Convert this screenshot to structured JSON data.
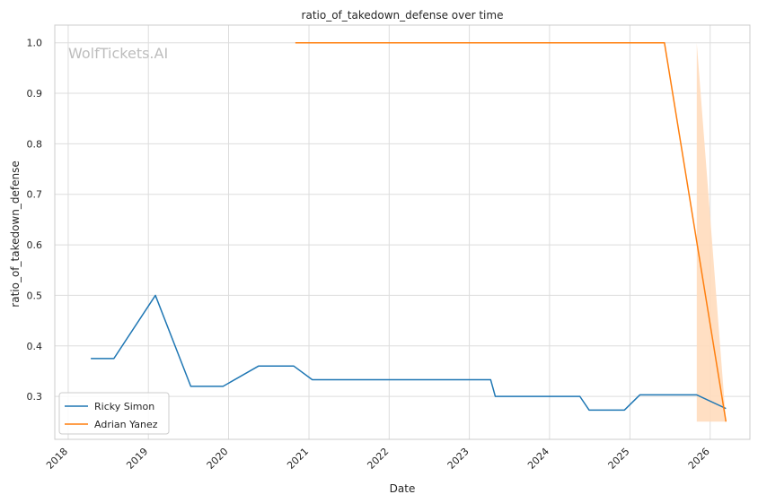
{
  "chart_data": {
    "type": "line",
    "title": "ratio_of_takedown_defense over time",
    "xlabel": "Date",
    "ylabel": "ratio_of_takedown_defense",
    "watermark": "WolfTickets.AI",
    "x_ticks": [
      "2018",
      "2019",
      "2020",
      "2021",
      "2022",
      "2023",
      "2024",
      "2025",
      "2026"
    ],
    "y_ticks": [
      "0.3",
      "0.4",
      "0.5",
      "0.6",
      "0.7",
      "0.8",
      "0.9",
      "1.0"
    ],
    "xlim": [
      "2017-11-01",
      "2026-07-01"
    ],
    "ylim": [
      0.215,
      1.035
    ],
    "grid": true,
    "legend_position": "lower-left",
    "series": [
      {
        "name": "Ricky Simon",
        "color": "#1f77b4",
        "points": [
          {
            "x": "2018-04-14",
            "y": 0.375
          },
          {
            "x": "2018-07-28",
            "y": 0.375
          },
          {
            "x": "2019-02-02",
            "y": 0.5
          },
          {
            "x": "2019-07-13",
            "y": 0.32
          },
          {
            "x": "2019-12-07",
            "y": 0.32
          },
          {
            "x": "2020-05-16",
            "y": 0.36
          },
          {
            "x": "2020-10-24",
            "y": 0.36
          },
          {
            "x": "2021-01-16",
            "y": 0.333
          },
          {
            "x": "2023-04-08",
            "y": 0.333
          },
          {
            "x": "2023-04-29",
            "y": 0.3
          },
          {
            "x": "2024-05-18",
            "y": 0.3
          },
          {
            "x": "2024-06-29",
            "y": 0.273
          },
          {
            "x": "2024-12-07",
            "y": 0.273
          },
          {
            "x": "2025-02-15",
            "y": 0.303
          },
          {
            "x": "2025-11-01",
            "y": 0.303
          },
          {
            "x": "2026-03-14",
            "y": 0.276
          }
        ]
      },
      {
        "name": "Adrian Yanez",
        "color": "#ff7f0e",
        "band_color": "#ffdcbd",
        "points": [
          {
            "x": "2020-10-31",
            "y": 1.0
          },
          {
            "x": "2025-06-07",
            "y": 1.0
          },
          {
            "x": "2026-03-14",
            "y": 0.25
          }
        ],
        "band": [
          {
            "x": "2025-11-01",
            "lo": 0.25,
            "hi": 1.0
          },
          {
            "x": "2026-03-14",
            "lo": 0.25,
            "hi": 0.25
          }
        ]
      }
    ]
  }
}
